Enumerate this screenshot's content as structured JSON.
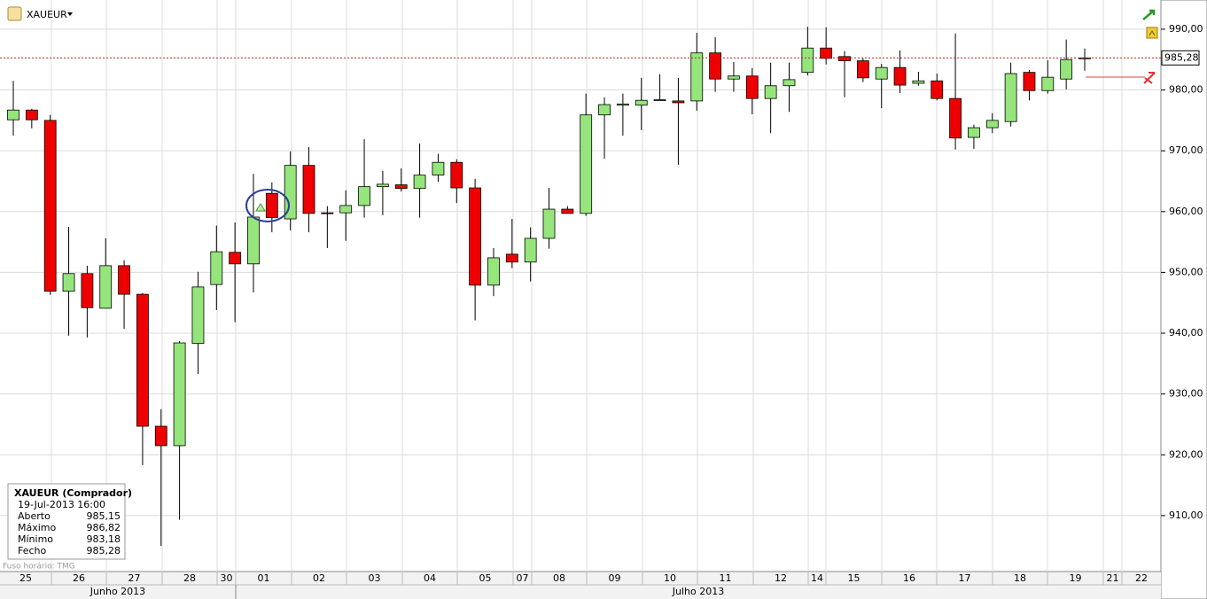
{
  "chart_data": {
    "type": "candlestick",
    "symbol": "XAUEUR",
    "open": [
      975.1,
      976.7,
      975.0,
      946.9,
      949.8,
      944.1,
      951.1,
      946.4,
      924.7,
      921.5,
      938.3,
      948.0,
      953.3,
      951.4,
      963.0,
      958.8,
      967.6,
      959.8,
      959.8,
      961.0,
      964.1,
      964.4,
      963.8,
      966.0,
      968.1,
      963.9,
      947.9,
      953.0,
      951.7,
      955.6,
      960.4,
      959.7,
      975.9,
      977.5,
      977.5,
      978.3,
      978.2,
      978.2,
      986.1,
      981.8,
      982.3,
      978.6,
      980.7,
      982.9,
      986.9,
      985.5,
      984.8,
      981.8,
      983.7,
      981.1,
      981.5,
      978.6,
      972.2,
      973.8,
      974.8,
      982.9,
      979.9,
      981.8,
      985.15
    ],
    "high": [
      981.5,
      976.9,
      975.9,
      957.5,
      951.1,
      955.6,
      952.0,
      946.6,
      927.5,
      938.7,
      950.1,
      957.7,
      958.2,
      966.2,
      964.8,
      969.9,
      970.6,
      960.9,
      963.5,
      971.9,
      966.7,
      967.1,
      971.2,
      969.5,
      968.6,
      965.4,
      954.0,
      958.8,
      957.4,
      963.9,
      960.9,
      979.4,
      978.8,
      979.4,
      982.0,
      982.6,
      982.0,
      989.4,
      988.7,
      984.6,
      983.6,
      984.5,
      984.5,
      990.4,
      990.3,
      986.4,
      985.2,
      984.3,
      986.5,
      983.0,
      982.7,
      989.3,
      974.3,
      976.2,
      984.5,
      983.3,
      984.9,
      988.3,
      986.82
    ],
    "low": [
      972.5,
      973.7,
      946.3,
      939.6,
      939.3,
      944.1,
      940.7,
      918.3,
      905.0,
      909.3,
      933.3,
      943.8,
      941.8,
      946.7,
      956.6,
      956.9,
      956.6,
      954.0,
      955.2,
      959.0,
      959.4,
      963.3,
      959.0,
      964.9,
      961.4,
      942.1,
      946.1,
      950.7,
      948.5,
      953.9,
      959.7,
      959.3,
      968.7,
      972.5,
      973.4,
      978.2,
      967.7,
      976.6,
      979.7,
      979.7,
      976.0,
      972.9,
      976.4,
      982.4,
      984.2,
      978.8,
      981.3,
      977.0,
      979.5,
      980.7,
      978.3,
      970.2,
      970.3,
      972.9,
      974.0,
      978.3,
      979.4,
      980.1,
      983.18
    ],
    "close": [
      976.7,
      975.1,
      946.9,
      949.8,
      944.2,
      951.1,
      946.4,
      924.7,
      921.5,
      938.4,
      947.6,
      953.4,
      951.4,
      959.1,
      959.0,
      967.6,
      959.7,
      959.7,
      961.0,
      964.1,
      964.5,
      963.8,
      966.0,
      968.1,
      963.9,
      947.9,
      952.4,
      951.7,
      955.6,
      960.4,
      959.7,
      975.9,
      977.6,
      977.7,
      978.3,
      978.4,
      977.9,
      986.1,
      981.8,
      982.3,
      978.6,
      980.7,
      981.7,
      986.9,
      985.2,
      984.8,
      982.0,
      983.7,
      980.8,
      981.5,
      978.6,
      972.1,
      973.8,
      975.0,
      982.7,
      979.9,
      982.1,
      985.0,
      985.28
    ],
    "up_color": "#95e57c",
    "down_color": "#ee0000",
    "ylim": [
      900.8,
      994.8
    ],
    "yticks": [
      {
        "value": 910,
        "label": "910,00"
      },
      {
        "value": 920,
        "label": "920,00"
      },
      {
        "value": 930,
        "label": "930,00"
      },
      {
        "value": 940,
        "label": "940,00"
      },
      {
        "value": 950,
        "label": "950,00"
      },
      {
        "value": 960,
        "label": "960,00"
      },
      {
        "value": 970,
        "label": "970,00"
      },
      {
        "value": 980,
        "label": "980,00"
      },
      {
        "value": 990,
        "label": "990,00"
      }
    ],
    "grid": true,
    "last_price": {
      "value": 985.28,
      "label": "985,28"
    },
    "days": [
      "25",
      "26",
      "27",
      "28",
      "30",
      "01",
      "02",
      "03",
      "04",
      "05",
      "07",
      "08",
      "09",
      "10",
      "11",
      "12",
      "14",
      "15",
      "16",
      "17",
      "18",
      "19",
      "21",
      "22"
    ],
    "months": [
      "Junho 2013",
      "Julho 2013"
    ],
    "info_box": {
      "title": "XAUEUR (Comprador)",
      "date": "19-Jul-2013 16:00",
      "rows": [
        {
          "label": "Aberto",
          "value": "985,15"
        },
        {
          "label": "Máximo",
          "value": "986,82"
        },
        {
          "label": "Mínimo",
          "value": "983,18"
        },
        {
          "label": "Fecho",
          "value": "985,28"
        }
      ]
    },
    "timezone": "Fuso horário: TMG"
  }
}
